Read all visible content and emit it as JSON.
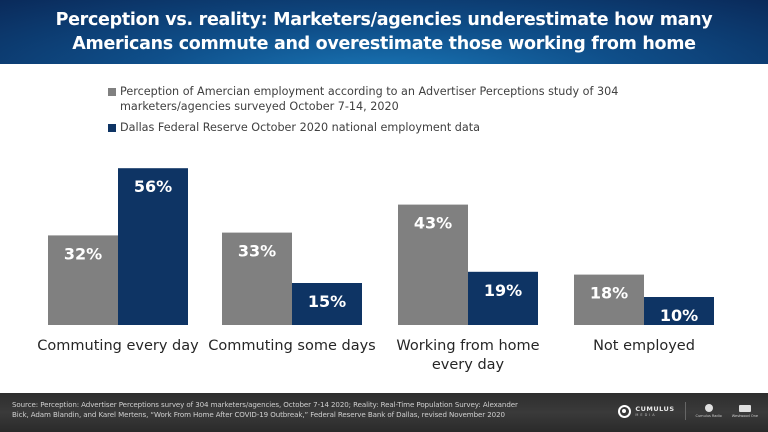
{
  "header": {
    "title_line1": "Perception vs. reality: Marketers/agencies underestimate how many",
    "title_line2": "Americans commute and overestimate those working from home"
  },
  "colors": {
    "header_bg": "#0f4f8a",
    "perception": "#808080",
    "reality": "#0e3464",
    "bar_label": "#ffffff",
    "axis_label": "#262626",
    "footer_bg": "#333333"
  },
  "chart_data": {
    "type": "bar",
    "title": "Perception vs. reality: Marketers/agencies underestimate how many Americans commute and overestimate those working from home",
    "xlabel": "",
    "ylabel": "",
    "ylim": [
      0,
      60
    ],
    "grid": false,
    "legend_position": "top",
    "categories": [
      "Commuting every day",
      "Commuting some days",
      "Working from home every day",
      "Not employed"
    ],
    "category_lines": [
      [
        "Commuting every day"
      ],
      [
        "Commuting some days"
      ],
      [
        "Working from home",
        "every day"
      ],
      [
        "Not employed"
      ]
    ],
    "series": [
      {
        "name": "Perception of Amercian employment according to an Advertiser Perceptions study of 304 marketers/agencies surveyed October 7-14, 2020",
        "color": "#808080",
        "values": [
          32,
          33,
          43,
          18
        ],
        "labels": [
          "32%",
          "33%",
          "43%",
          "18%"
        ]
      },
      {
        "name": "Dallas Federal Reserve October 2020 national employment data",
        "color": "#0e3464",
        "values": [
          56,
          15,
          19,
          10
        ],
        "labels": [
          "56%",
          "15%",
          "19%",
          "10%"
        ]
      }
    ]
  },
  "legend": {
    "items": [
      {
        "line1": "Perception of Amercian employment according to an Advertiser Perceptions study of 304",
        "line2": "marketers/agencies surveyed October 7-14, 2020"
      },
      {
        "line1": "Dallas Federal Reserve October 2020 national employment data",
        "line2": ""
      }
    ]
  },
  "footer": {
    "source_line1": "Source: Perception: Advertiser Perceptions survey of 304 marketers/agencies,  October 7-14 2020; Reality: Real-Time Population Survey: Alexander",
    "source_line2": "Bick, Adam Blandin, and Karel Mertens, “Work From Home After COVID-19 Outbreak,” Federal Reserve Bank of Dallas, revised November 2020",
    "logos": {
      "cumulus_name": "CUMULUS",
      "cumulus_sub": "MEDIA",
      "logo2_label": "Cumulus Radio",
      "logo3_label": "Westwood One"
    }
  }
}
